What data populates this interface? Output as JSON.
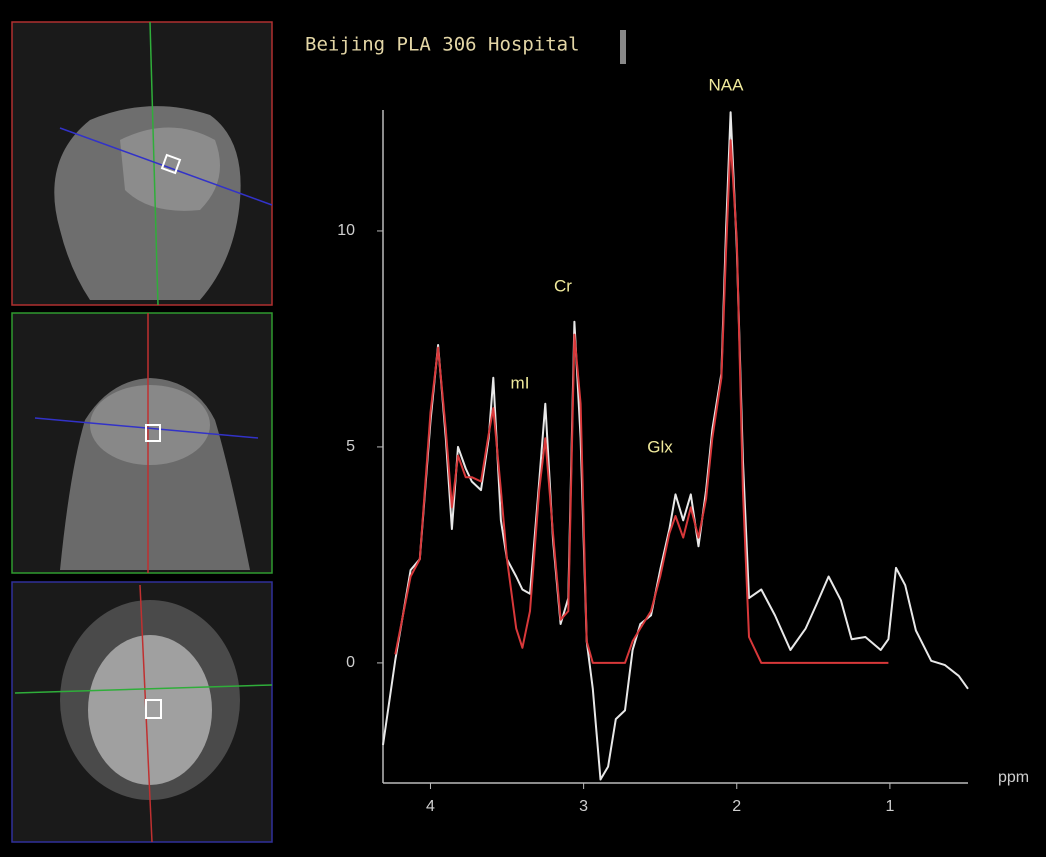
{
  "chart_data": {
    "type": "line",
    "title": "Beijing PLA 306 Hospital",
    "xlabel": "ppm",
    "annotations": [
      "NAA",
      "Cr",
      "mI",
      "Glx"
    ],
    "x": [
      4.31,
      4.23,
      4.13,
      4.07,
      4.0,
      3.95,
      3.9,
      3.86,
      3.82,
      3.77,
      3.73,
      3.67,
      3.62,
      3.59,
      3.54,
      3.5,
      3.44,
      3.4,
      3.35,
      3.29,
      3.25,
      3.2,
      3.15,
      3.1,
      3.06,
      3.02,
      2.98,
      2.94,
      2.89,
      2.84,
      2.79,
      2.73,
      2.68,
      2.63,
      2.56,
      2.5,
      2.44,
      2.4,
      2.35,
      2.3,
      2.25,
      2.2,
      2.16,
      2.1,
      2.07,
      2.04,
      2.0,
      1.96,
      1.92,
      1.84,
      1.75,
      1.65,
      1.55,
      1.48,
      1.4,
      1.32,
      1.25,
      1.16,
      1.06,
      1.01,
      0.96,
      0.9,
      0.83,
      0.73,
      0.64,
      0.55,
      0.49
    ],
    "series": [
      {
        "color": "#e8e8e8",
        "values": [
          -1.9,
          0.07,
          2.15,
          2.4,
          5.6,
          7.36,
          5.2,
          3.1,
          5.0,
          4.5,
          4.2,
          4.0,
          5.2,
          6.6,
          3.3,
          2.4,
          2.0,
          1.7,
          1.6,
          4.2,
          6.0,
          2.85,
          0.9,
          1.5,
          7.9,
          5.2,
          0.5,
          -0.6,
          -2.7,
          -2.4,
          -1.3,
          -1.1,
          0.3,
          0.9,
          1.1,
          2.15,
          3.1,
          3.9,
          3.3,
          3.9,
          2.7,
          4.0,
          5.4,
          6.7,
          10.0,
          12.75,
          9.6,
          4.7,
          1.5,
          1.7,
          1.1,
          0.3,
          0.8,
          1.35,
          2.0,
          1.45,
          0.55,
          0.6,
          0.3,
          0.55,
          2.2,
          1.8,
          0.75,
          0.05,
          -0.05,
          -0.3,
          -0.6
        ]
      },
      {
        "color": "#d8383a",
        "values": [
          null,
          0.2,
          2.0,
          2.4,
          5.8,
          7.3,
          5.4,
          3.6,
          4.8,
          4.3,
          4.3,
          4.2,
          5.3,
          5.9,
          4.0,
          2.4,
          0.8,
          0.35,
          1.2,
          4.0,
          5.2,
          3.0,
          1.0,
          1.2,
          7.6,
          6.0,
          0.5,
          0,
          0,
          0,
          0,
          0,
          0.5,
          0.8,
          1.2,
          2.0,
          3.0,
          3.4,
          2.9,
          3.6,
          2.9,
          3.8,
          5.2,
          6.6,
          9.5,
          12.1,
          9.8,
          4.0,
          0.6,
          0,
          0,
          0,
          0,
          0,
          0,
          0,
          0,
          0,
          0,
          0,
          null,
          null,
          null,
          null,
          null,
          null,
          null
        ]
      }
    ],
    "xlim": [
      4.31,
      0.49
    ],
    "ylim": [
      -2.78,
      12.8
    ],
    "xticks": [
      4,
      3,
      2,
      1
    ],
    "yticks": [
      0,
      5,
      10
    ]
  }
}
